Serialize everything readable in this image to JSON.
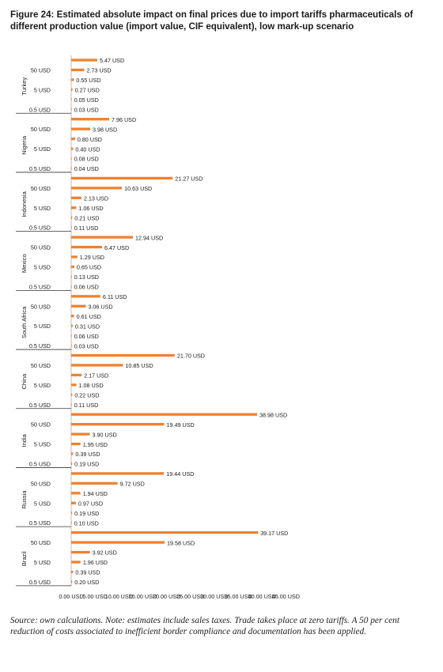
{
  "figure": {
    "title": "Figure 24: Estimated absolute impact on final prices due to import tariffs pharmaceuticals of different production value (import value, CIF equivalent), low mark-up scenario",
    "source": "Source: own calculations. Note: estimates include sales taxes. Trade takes place at zero tariffs. A 50 per cent reduction of costs associated to inefficient border compliance and documentation has been applied."
  },
  "chart_data": {
    "type": "bar",
    "orientation": "horizontal",
    "bar_color": "#f0812f",
    "xlim": [
      0,
      45
    ],
    "x_ticks": [
      "0.00 USD",
      "5.00 USD",
      "10.00 USD",
      "15.00 USD",
      "20.00 USD",
      "25.00 USD",
      "30.00 USD",
      "35.00 USD",
      "40.00 USD",
      "45.00 USD"
    ],
    "category_labels": [
      "50 USD",
      "5 USD",
      "0.5 USD"
    ],
    "groups": [
      {
        "country": "Turkey",
        "values": [
          5.47,
          2.73,
          0.55,
          0.27,
          0.05,
          0.03
        ],
        "labels": [
          "5.47 USD",
          "2.73 USD",
          "0.55 USD",
          "0.27 USD",
          "0.05 USD",
          "0.03 USD"
        ]
      },
      {
        "country": "Nigeria",
        "values": [
          7.96,
          3.98,
          0.8,
          0.4,
          0.08,
          0.04
        ],
        "labels": [
          "7.96 USD",
          "3.98 USD",
          "0.80 USD",
          "0.40 USD",
          "0.08 USD",
          "0.04 USD"
        ]
      },
      {
        "country": "Indonesia",
        "values": [
          21.27,
          10.63,
          2.13,
          1.06,
          0.21,
          0.11
        ],
        "labels": [
          "21.27 USD",
          "10.63 USD",
          "2.13 USD",
          "1.06 USD",
          "0.21 USD",
          "0.11 USD"
        ]
      },
      {
        "country": "Mexico",
        "values": [
          12.94,
          6.47,
          1.29,
          0.65,
          0.13,
          0.06
        ],
        "labels": [
          "12.94 USD",
          "6.47 USD",
          "1.29 USD",
          "0.65 USD",
          "0.13 USD",
          "0.06 USD"
        ]
      },
      {
        "country": "South Africa",
        "values": [
          6.11,
          3.06,
          0.61,
          0.31,
          0.06,
          0.03
        ],
        "labels": [
          "6.11 USD",
          "3.06 USD",
          "0.61 USD",
          "0.31 USD",
          "0.06 USD",
          "0.03 USD"
        ]
      },
      {
        "country": "China",
        "values": [
          21.7,
          10.85,
          2.17,
          1.08,
          0.22,
          0.11
        ],
        "labels": [
          "21.70 USD",
          "10.85 USD",
          "2.17 USD",
          "1.08 USD",
          "0.22 USD",
          "0.11 USD"
        ]
      },
      {
        "country": "India",
        "values": [
          38.98,
          19.49,
          3.9,
          1.95,
          0.39,
          0.19
        ],
        "labels": [
          "38.98 USD",
          "19.49 USD",
          "3.90 USD",
          "1.95 USD",
          "0.39 USD",
          "0.19 USD"
        ]
      },
      {
        "country": "Russia",
        "values": [
          19.44,
          9.72,
          1.94,
          0.97,
          0.19,
          0.1
        ],
        "labels": [
          "19.44 USD",
          "9.72 USD",
          "1.94 USD",
          "0.97 USD",
          "0.19 USD",
          "0.10 USD"
        ]
      },
      {
        "country": "Brazil",
        "values": [
          39.17,
          19.58,
          3.92,
          1.96,
          0.39,
          0.2
        ],
        "labels": [
          "39.17 USD",
          "19.58 USD",
          "3.92 USD",
          "1.96 USD",
          "0.39 USD",
          "0.20 USD"
        ]
      }
    ]
  }
}
